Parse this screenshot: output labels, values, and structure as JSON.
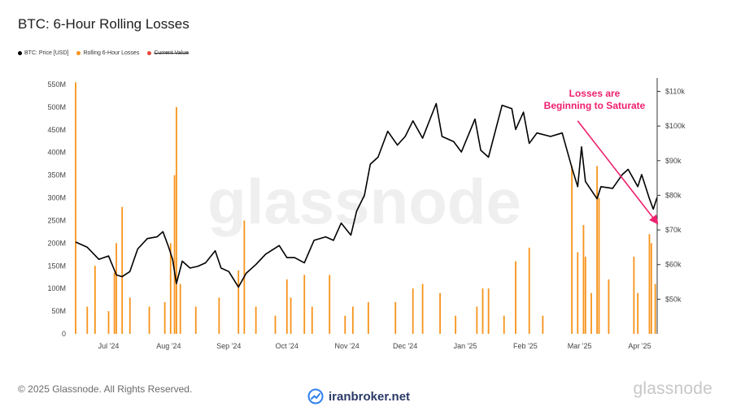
{
  "header": {
    "title": "BTC: 6-Hour Rolling Losses"
  },
  "legend": [
    {
      "label": "BTC: Price [USD]",
      "color": "#000000",
      "struck": false
    },
    {
      "label": "Rolling 6-Hour Losses",
      "color": "#f7931a",
      "struck": false
    },
    {
      "label": "Current Value",
      "color": "#e8453c",
      "struck": true
    }
  ],
  "watermark_bg": "glassnode",
  "footer": {
    "copyright": "© 2025 Glassnode. All Rights Reserved.",
    "brand": "glassnode",
    "site": "iranbroker.net"
  },
  "chart_data": {
    "type": "bar+line",
    "title": "BTC: 6-Hour Rolling Losses",
    "x_tick_labels": [
      "Jul '24",
      "Aug '24",
      "Sep '24",
      "Oct '24",
      "Nov '24",
      "Dec '24",
      "Jan '25",
      "Feb '25",
      "Mar '25",
      "Apr '25"
    ],
    "x_tick_dates": [
      "2024-07-01",
      "2024-08-01",
      "2024-09-01",
      "2024-10-01",
      "2024-11-01",
      "2024-12-01",
      "2025-01-01",
      "2025-02-01",
      "2025-03-01",
      "2025-04-01"
    ],
    "x_range": [
      "2024-06-14",
      "2025-04-10"
    ],
    "left_axis": {
      "label": "Rolling 6-Hour Losses",
      "range": [
        0,
        550000000
      ],
      "tick_values": [
        0,
        50000000,
        100000000,
        150000000,
        200000000,
        250000000,
        300000000,
        350000000,
        400000000,
        450000000,
        500000000,
        550000000
      ],
      "tick_labels": [
        "0",
        "50M",
        "100M",
        "150M",
        "200M",
        "250M",
        "300M",
        "350M",
        "400M",
        "450M",
        "500M",
        "550M"
      ]
    },
    "right_axis": {
      "label": "BTC: Price [USD]",
      "range": [
        40000,
        112000
      ],
      "tick_values": [
        50000,
        60000,
        70000,
        80000,
        90000,
        100000,
        110000
      ],
      "tick_labels": [
        "$50k",
        "$60k",
        "$70k",
        "$80k",
        "$90k",
        "$100k",
        "$110k"
      ]
    },
    "series": [
      {
        "name": "BTC: Price [USD]",
        "type": "line",
        "color": "#000000",
        "points": [
          [
            "2024-06-14",
            66500
          ],
          [
            "2024-06-20",
            65000
          ],
          [
            "2024-06-26",
            61500
          ],
          [
            "2024-07-01",
            62500
          ],
          [
            "2024-07-05",
            57000
          ],
          [
            "2024-07-08",
            56500
          ],
          [
            "2024-07-12",
            58000
          ],
          [
            "2024-07-16",
            64500
          ],
          [
            "2024-07-21",
            67500
          ],
          [
            "2024-07-26",
            68000
          ],
          [
            "2024-07-29",
            69500
          ],
          [
            "2024-08-01",
            65000
          ],
          [
            "2024-08-03",
            61500
          ],
          [
            "2024-08-05",
            54500
          ],
          [
            "2024-08-08",
            61000
          ],
          [
            "2024-08-12",
            59000
          ],
          [
            "2024-08-16",
            59500
          ],
          [
            "2024-08-20",
            60500
          ],
          [
            "2024-08-25",
            64000
          ],
          [
            "2024-08-28",
            59000
          ],
          [
            "2024-09-01",
            58000
          ],
          [
            "2024-09-06",
            53500
          ],
          [
            "2024-09-10",
            57500
          ],
          [
            "2024-09-15",
            60000
          ],
          [
            "2024-09-20",
            63000
          ],
          [
            "2024-09-27",
            65500
          ],
          [
            "2024-10-01",
            62000
          ],
          [
            "2024-10-05",
            62000
          ],
          [
            "2024-10-10",
            60500
          ],
          [
            "2024-10-15",
            67000
          ],
          [
            "2024-10-21",
            68000
          ],
          [
            "2024-10-25",
            67000
          ],
          [
            "2024-10-29",
            72000
          ],
          [
            "2024-11-03",
            68500
          ],
          [
            "2024-11-06",
            75500
          ],
          [
            "2024-11-10",
            80000
          ],
          [
            "2024-11-13",
            89000
          ],
          [
            "2024-11-17",
            91000
          ],
          [
            "2024-11-22",
            98500
          ],
          [
            "2024-11-27",
            94500
          ],
          [
            "2024-12-01",
            97000
          ],
          [
            "2024-12-05",
            101500
          ],
          [
            "2024-12-10",
            96500
          ],
          [
            "2024-12-17",
            106500
          ],
          [
            "2024-12-20",
            97000
          ],
          [
            "2024-12-26",
            95500
          ],
          [
            "2024-12-30",
            92500
          ],
          [
            "2025-01-06",
            102000
          ],
          [
            "2025-01-09",
            93000
          ],
          [
            "2025-01-13",
            91000
          ],
          [
            "2025-01-20",
            106000
          ],
          [
            "2025-01-25",
            105000
          ],
          [
            "2025-01-27",
            99000
          ],
          [
            "2025-01-31",
            104000
          ],
          [
            "2025-02-03",
            95000
          ],
          [
            "2025-02-07",
            98000
          ],
          [
            "2025-02-14",
            97000
          ],
          [
            "2025-02-20",
            98000
          ],
          [
            "2025-02-25",
            88000
          ],
          [
            "2025-02-28",
            82500
          ],
          [
            "2025-03-02",
            94000
          ],
          [
            "2025-03-04",
            84000
          ],
          [
            "2025-03-10",
            79000
          ],
          [
            "2025-03-12",
            82500
          ],
          [
            "2025-03-18",
            82000
          ],
          [
            "2025-03-23",
            86000
          ],
          [
            "2025-03-26",
            87500
          ],
          [
            "2025-03-31",
            82500
          ],
          [
            "2025-04-02",
            86000
          ],
          [
            "2025-04-06",
            79000
          ],
          [
            "2025-04-08",
            76000
          ],
          [
            "2025-04-10",
            79500
          ]
        ]
      },
      {
        "name": "Rolling 6-Hour Losses",
        "type": "bar",
        "color": "#f7931a",
        "points": [
          [
            "2024-06-14",
            555000000
          ],
          [
            "2024-06-20",
            60000000
          ],
          [
            "2024-06-24",
            150000000
          ],
          [
            "2024-07-01",
            50000000
          ],
          [
            "2024-07-04",
            135000000
          ],
          [
            "2024-07-05",
            200000000
          ],
          [
            "2024-07-08",
            280000000
          ],
          [
            "2024-07-12",
            80000000
          ],
          [
            "2024-07-22",
            60000000
          ],
          [
            "2024-07-30",
            70000000
          ],
          [
            "2024-08-02",
            200000000
          ],
          [
            "2024-08-04",
            350000000
          ],
          [
            "2024-08-05",
            500000000
          ],
          [
            "2024-08-07",
            110000000
          ],
          [
            "2024-08-15",
            60000000
          ],
          [
            "2024-08-27",
            80000000
          ],
          [
            "2024-09-06",
            140000000
          ],
          [
            "2024-09-09",
            250000000
          ],
          [
            "2024-09-15",
            60000000
          ],
          [
            "2024-09-25",
            40000000
          ],
          [
            "2024-10-01",
            120000000
          ],
          [
            "2024-10-03",
            80000000
          ],
          [
            "2024-10-10",
            130000000
          ],
          [
            "2024-10-14",
            60000000
          ],
          [
            "2024-10-23",
            130000000
          ],
          [
            "2024-10-31",
            40000000
          ],
          [
            "2024-11-04",
            60000000
          ],
          [
            "2024-11-12",
            70000000
          ],
          [
            "2024-11-26",
            70000000
          ],
          [
            "2024-12-05",
            100000000
          ],
          [
            "2024-12-10",
            110000000
          ],
          [
            "2024-12-19",
            90000000
          ],
          [
            "2024-12-27",
            40000000
          ],
          [
            "2025-01-07",
            60000000
          ],
          [
            "2025-01-10",
            100000000
          ],
          [
            "2025-01-13",
            100000000
          ],
          [
            "2025-01-21",
            40000000
          ],
          [
            "2025-01-27",
            160000000
          ],
          [
            "2025-02-03",
            190000000
          ],
          [
            "2025-02-10",
            40000000
          ],
          [
            "2025-02-25",
            370000000
          ],
          [
            "2025-02-28",
            180000000
          ],
          [
            "2025-03-03",
            240000000
          ],
          [
            "2025-03-04",
            170000000
          ],
          [
            "2025-03-07",
            90000000
          ],
          [
            "2025-03-10",
            370000000
          ],
          [
            "2025-03-11",
            300000000
          ],
          [
            "2025-03-16",
            120000000
          ],
          [
            "2025-03-29",
            170000000
          ],
          [
            "2025-03-31",
            90000000
          ],
          [
            "2025-04-06",
            220000000
          ],
          [
            "2025-04-07",
            200000000
          ],
          [
            "2025-04-09",
            110000000
          ]
        ]
      }
    ],
    "annotations": [
      {
        "text_lines": [
          "Losses are",
          "Beginning to Saturate"
        ],
        "color": "#ee1f6d",
        "arrow_from": [
          "2025-02-28",
          101500
        ],
        "arrow_to": [
          "2025-04-10",
          72000
        ]
      }
    ],
    "grid": false,
    "legend_position": "top-left"
  }
}
